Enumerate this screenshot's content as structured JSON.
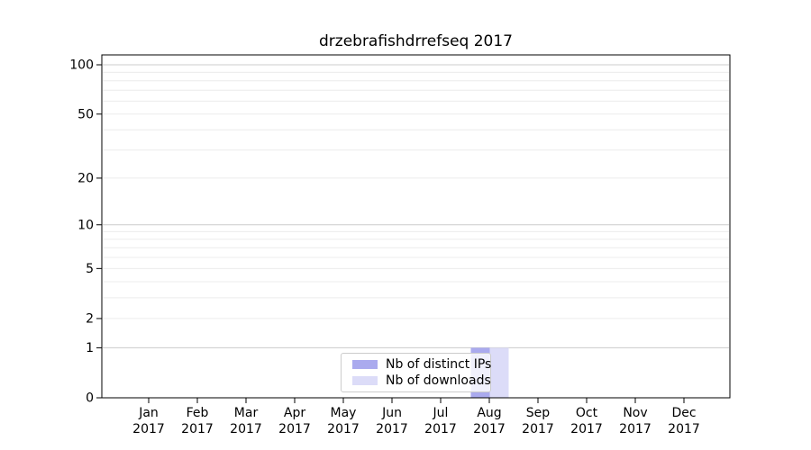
{
  "figure": {
    "background": "#ffffff",
    "axis_color": "#000000",
    "major_grid_color": "#cccccc",
    "minor_grid_color": "#ececec"
  },
  "chart_data": {
    "type": "bar",
    "title": "drzebrafishdrrefseq 2017",
    "categories": [
      "Jan",
      "Feb",
      "Mar",
      "Apr",
      "May",
      "Jun",
      "Jul",
      "Aug",
      "Sep",
      "Oct",
      "Nov",
      "Dec"
    ],
    "x_year_label": "2017",
    "series": [
      {
        "name": "Nb of distinct IPs",
        "color": "#aaaaee",
        "values": [
          0,
          0,
          0,
          0,
          0,
          0,
          0,
          1,
          0,
          0,
          0,
          0
        ]
      },
      {
        "name": "Nb of downloads",
        "color": "#dcdcf8",
        "values": [
          0,
          0,
          0,
          0,
          0,
          0,
          0,
          1,
          0,
          0,
          0,
          0
        ]
      }
    ],
    "yscale": "log1p",
    "ylim": [
      0,
      115
    ],
    "ytick_values": [
      0,
      1,
      2,
      5,
      10,
      20,
      50,
      100
    ],
    "ytick_labels": [
      "0",
      "1",
      "2",
      "5",
      "10",
      "20",
      "50",
      "100"
    ],
    "major_grid_values": [
      1,
      10,
      100
    ],
    "minor_grid_values": [
      2,
      3,
      4,
      5,
      6,
      7,
      8,
      9,
      20,
      30,
      40,
      50,
      60,
      70,
      80,
      90
    ],
    "grid": true,
    "legend_position": "lower center"
  }
}
